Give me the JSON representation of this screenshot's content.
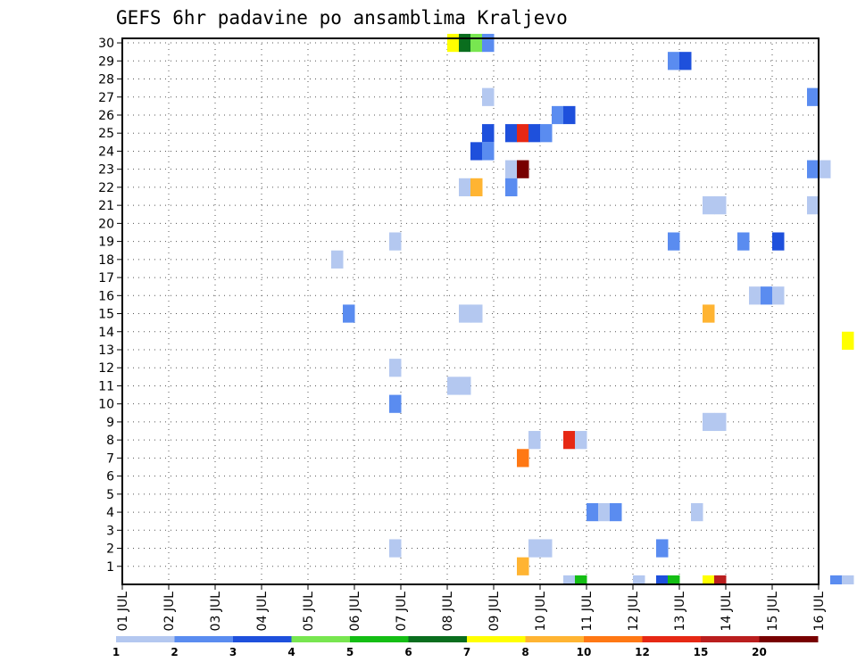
{
  "chart_data": {
    "type": "heatmap",
    "title": "GEFS 6hr padavine po ansamblima Kraljevo",
    "x_ticks": [
      "01 JUL",
      "02 JUL",
      "03 JUL",
      "04 JUL",
      "05 JUL",
      "06 JUL",
      "07 JUL",
      "08 JUL",
      "09 JUL",
      "10 JUL",
      "11 JUL",
      "12 JUL",
      "13 JUL",
      "14 JUL",
      "15 JUL",
      "16 JUL"
    ],
    "y_ticks": [
      1,
      2,
      3,
      4,
      5,
      6,
      7,
      8,
      9,
      10,
      11,
      12,
      13,
      14,
      15,
      16,
      17,
      18,
      19,
      20,
      21,
      22,
      23,
      24,
      25,
      26,
      27,
      28,
      29,
      30
    ],
    "xlim_days": [
      0,
      15
    ],
    "ylim_members": [
      0,
      30
    ],
    "grid": true,
    "colorbar": {
      "thresholds": [
        "1",
        "2",
        "3",
        "4",
        "5",
        "6",
        "7",
        "8",
        "10",
        "12",
        "15",
        "20"
      ],
      "colors": [
        "#b4c8f0",
        "#5a8cf0",
        "#1e50dc",
        "#78e650",
        "#14be14",
        "#0a6e1e",
        "#ffff00",
        "#ffb432",
        "#ff7814",
        "#e62814",
        "#ba1e1e",
        "#780000"
      ]
    },
    "cells": [
      {
        "t": 7.0,
        "m": 30,
        "c": 6
      },
      {
        "t": 7.25,
        "m": 30,
        "c": 5
      },
      {
        "t": 7.5,
        "m": 30,
        "c": 3
      },
      {
        "t": 7.75,
        "m": 30,
        "c": 1
      },
      {
        "t": 11.75,
        "m": 29,
        "c": 1
      },
      {
        "t": 12.0,
        "m": 29,
        "c": 2
      },
      {
        "t": 7.75,
        "m": 27,
        "c": 0
      },
      {
        "t": 14.75,
        "m": 27,
        "c": 1
      },
      {
        "t": 9.25,
        "m": 26,
        "c": 1
      },
      {
        "t": 9.5,
        "m": 26,
        "c": 2
      },
      {
        "t": 7.75,
        "m": 25,
        "c": 2
      },
      {
        "t": 8.25,
        "m": 25,
        "c": 2
      },
      {
        "t": 8.5,
        "m": 25,
        "c": 9
      },
      {
        "t": 8.75,
        "m": 25,
        "c": 2
      },
      {
        "t": 9.0,
        "m": 25,
        "c": 1
      },
      {
        "t": 7.5,
        "m": 24,
        "c": 2
      },
      {
        "t": 7.75,
        "m": 24,
        "c": 1
      },
      {
        "t": 8.25,
        "m": 23,
        "c": 0
      },
      {
        "t": 8.5,
        "m": 23,
        "c": 11
      },
      {
        "t": 14.75,
        "m": 23,
        "c": 1
      },
      {
        "t": 15.0,
        "m": 23,
        "c": 0
      },
      {
        "t": 7.25,
        "m": 22,
        "c": 0
      },
      {
        "t": 7.5,
        "m": 22,
        "c": 7
      },
      {
        "t": 8.25,
        "m": 22,
        "c": 1
      },
      {
        "t": 12.5,
        "m": 21,
        "c": 0
      },
      {
        "t": 12.75,
        "m": 21,
        "c": 0
      },
      {
        "t": 14.75,
        "m": 21,
        "c": 0
      },
      {
        "t": 5.75,
        "m": 19,
        "c": 0
      },
      {
        "t": 11.75,
        "m": 19,
        "c": 1
      },
      {
        "t": 13.25,
        "m": 19,
        "c": 1
      },
      {
        "t": 14.0,
        "m": 19,
        "c": 2
      },
      {
        "t": 4.5,
        "m": 18,
        "c": 0
      },
      {
        "t": 13.5,
        "m": 16,
        "c": 0
      },
      {
        "t": 13.75,
        "m": 16,
        "c": 1
      },
      {
        "t": 14.0,
        "m": 16,
        "c": 0
      },
      {
        "t": 4.75,
        "m": 15,
        "c": 1
      },
      {
        "t": 7.25,
        "m": 15,
        "c": 0
      },
      {
        "t": 7.5,
        "m": 15,
        "c": 0
      },
      {
        "t": 12.5,
        "m": 15,
        "c": 7
      },
      {
        "t": 15.5,
        "m": 13.5,
        "c": 6
      },
      {
        "t": 5.75,
        "m": 12,
        "c": 0
      },
      {
        "t": 7.0,
        "m": 11,
        "c": 0
      },
      {
        "t": 7.25,
        "m": 11,
        "c": 0
      },
      {
        "t": 5.75,
        "m": 10,
        "c": 1
      },
      {
        "t": 12.5,
        "m": 9,
        "c": 0
      },
      {
        "t": 12.75,
        "m": 9,
        "c": 0
      },
      {
        "t": 8.75,
        "m": 8,
        "c": 0
      },
      {
        "t": 9.5,
        "m": 8,
        "c": 9
      },
      {
        "t": 9.75,
        "m": 8,
        "c": 0
      },
      {
        "t": 8.5,
        "m": 7,
        "c": 8
      },
      {
        "t": 10.0,
        "m": 4,
        "c": 1
      },
      {
        "t": 10.25,
        "m": 4,
        "c": 0
      },
      {
        "t": 10.5,
        "m": 4,
        "c": 1
      },
      {
        "t": 12.25,
        "m": 4,
        "c": 0
      },
      {
        "t": 5.75,
        "m": 2,
        "c": 0
      },
      {
        "t": 8.75,
        "m": 2,
        "c": 0
      },
      {
        "t": 9.0,
        "m": 2,
        "c": 0
      },
      {
        "t": 11.5,
        "m": 2,
        "c": 1
      },
      {
        "t": 8.5,
        "m": 1,
        "c": 7
      },
      {
        "t": 9.5,
        "m": 0,
        "c": 0
      },
      {
        "t": 9.75,
        "m": 0,
        "c": 4
      },
      {
        "t": 11.0,
        "m": 0,
        "c": 0
      },
      {
        "t": 11.5,
        "m": 0,
        "c": 2
      },
      {
        "t": 11.75,
        "m": 0,
        "c": 4
      },
      {
        "t": 12.5,
        "m": 0,
        "c": 6
      },
      {
        "t": 12.75,
        "m": 0,
        "c": 10
      },
      {
        "t": 15.25,
        "m": 0,
        "c": 1
      },
      {
        "t": 15.5,
        "m": 0,
        "c": 0
      }
    ]
  }
}
